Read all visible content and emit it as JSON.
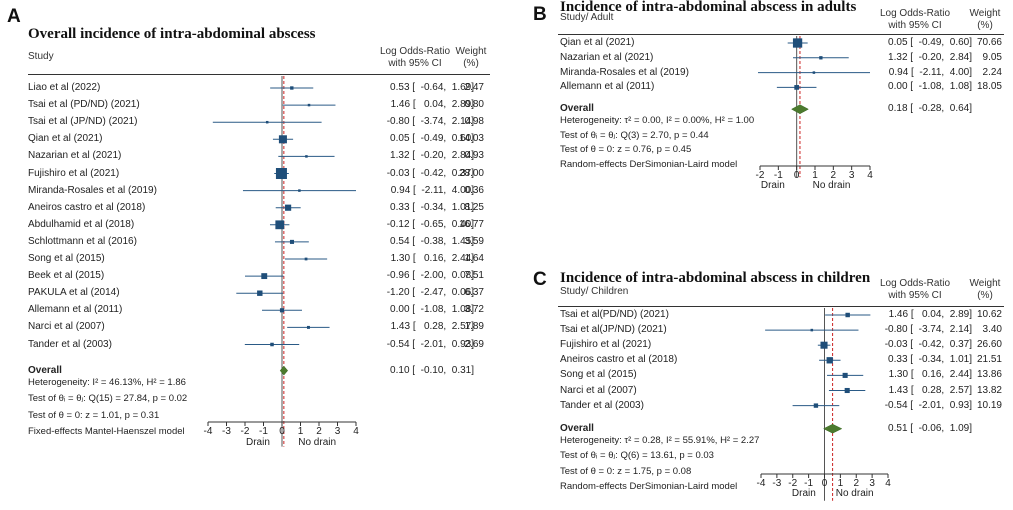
{
  "colors": {
    "marker": "#1f4e79",
    "line": "#2a5a86",
    "diamond": "#4c7a2e",
    "null_line": "#555555",
    "pooled_line": "#cc2222"
  },
  "chart_data": [
    {
      "type": "forest",
      "panel": "A",
      "title": "Overall incidence of intra-abdominal abscess",
      "study_header": "Study",
      "effect_header": [
        "Log Odds-Ratio",
        "with 95% CI"
      ],
      "weight_header": [
        "Weight",
        "(%)"
      ],
      "studies": [
        {
          "name": "Liao et al (2022)",
          "est": 0.53,
          "lo": -0.64,
          "hi": 1.69,
          "weight": 2.47,
          "ci_text": "0.53 [  -0.64,  1.69]",
          "w_text": "2.47"
        },
        {
          "name": "Tsai et al (PD/ND) (2021)",
          "est": 1.46,
          "lo": 0.04,
          "hi": 2.89,
          "weight": 0.8,
          "ci_text": "1.46 [   0.04,  2.89]",
          "w_text": "0.80"
        },
        {
          "name": "Tsai et al (JP/ND) (2021)",
          "est": -0.8,
          "lo": -3.74,
          "hi": 2.14,
          "weight": 0.98,
          "ci_text": "-0.80 [  -3.74,  2.14]",
          "w_text": "0.98"
        },
        {
          "name": "Qian et al (2021)",
          "est": 0.05,
          "lo": -0.49,
          "hi": 0.6,
          "weight": 14.03,
          "ci_text": "0.05 [  -0.49,  0.60]",
          "w_text": "14.03"
        },
        {
          "name": "Nazarian et al (2021)",
          "est": 1.32,
          "lo": -0.2,
          "hi": 2.84,
          "weight": 0.93,
          "ci_text": "1.32 [  -0.20,  2.84]",
          "w_text": "0.93"
        },
        {
          "name": "Fujishiro et al (2021)",
          "est": -0.03,
          "lo": -0.42,
          "hi": 0.37,
          "weight": 28.0,
          "ci_text": "-0.03 [  -0.42,  0.37]",
          "w_text": "28.00"
        },
        {
          "name": "Miranda-Rosales et al (2019)",
          "est": 0.94,
          "lo": -2.11,
          "hi": 4.0,
          "weight": 0.36,
          "ci_text": "0.94 [  -2.11,  4.00]",
          "w_text": "0.36"
        },
        {
          "name": "Aneiros castro et al (2018)",
          "est": 0.33,
          "lo": -0.34,
          "hi": 1.01,
          "weight": 8.25,
          "ci_text": "0.33 [  -0.34,  1.01]",
          "w_text": "8.25"
        },
        {
          "name": "Abdulhamid et al (2018)",
          "est": -0.12,
          "lo": -0.65,
          "hi": 0.4,
          "weight": 16.77,
          "ci_text": "-0.12 [  -0.65,  0.40]",
          "w_text": "16.77"
        },
        {
          "name": "Schlottmann et al (2016)",
          "est": 0.54,
          "lo": -0.38,
          "hi": 1.45,
          "weight": 3.59,
          "ci_text": "0.54 [  -0.38,  1.45]",
          "w_text": "3.59"
        },
        {
          "name": "Song et al (2015)",
          "est": 1.3,
          "lo": 0.16,
          "hi": 2.44,
          "weight": 1.64,
          "ci_text": "1.30 [   0.16,  2.44]",
          "w_text": "1.64"
        },
        {
          "name": "Beek et al (2015)",
          "est": -0.96,
          "lo": -2.0,
          "hi": 0.08,
          "weight": 7.51,
          "ci_text": "-0.96 [  -2.00,  0.08]",
          "w_text": "7.51"
        },
        {
          "name": "PAKULA et al (2014)",
          "est": -1.2,
          "lo": -2.47,
          "hi": 0.06,
          "weight": 6.37,
          "ci_text": "-1.20 [  -2.47,  0.06]",
          "w_text": "6.37"
        },
        {
          "name": "Allemann et al (2011)",
          "est": 0.0,
          "lo": -1.08,
          "hi": 1.08,
          "weight": 3.72,
          "ci_text": "0.00 [  -1.08,  1.08]",
          "w_text": "3.72"
        },
        {
          "name": "Narci et al (2007)",
          "est": 1.43,
          "lo": 0.28,
          "hi": 2.57,
          "weight": 1.89,
          "ci_text": "1.43 [   0.28,  2.57]",
          "w_text": "1.89"
        },
        {
          "name": "Tander et al (2003)",
          "est": -0.54,
          "lo": -2.01,
          "hi": 0.93,
          "weight": 2.69,
          "ci_text": "-0.54 [  -2.01,  0.93]",
          "w_text": "2.69"
        }
      ],
      "overall": {
        "name": "Overall",
        "est": 0.1,
        "lo": -0.1,
        "hi": 0.31,
        "ci_text": "0.10 [  -0.10,  0.31]"
      },
      "stats": [
        "Heterogeneity: I² = 46.13%, H² = 1.86",
        "Test of θᵢ = θⱼ: Q(15) = 27.84, p = 0.02",
        "Test of θ = 0: z = 1.01, p = 0.31",
        "Fixed-effects Mantel-Haenszel model"
      ],
      "x_ticks": [
        -4,
        -3,
        -2,
        -1,
        0,
        1,
        2,
        3,
        4
      ],
      "x_range": [
        -4,
        4
      ],
      "dir_left": "Drain",
      "dir_right": "No drain"
    },
    {
      "type": "forest",
      "panel": "B",
      "title": "Incidence of intra-abdominal abscess in adults",
      "study_header": "Study/ Adult",
      "effect_header": [
        "Log Odds-Ratio",
        "with 95% CI"
      ],
      "weight_header": [
        "Weight",
        "(%)"
      ],
      "studies": [
        {
          "name": "Qian et al (2021)",
          "est": 0.05,
          "lo": -0.49,
          "hi": 0.6,
          "weight": 70.66,
          "ci_text": "0.05 [  -0.49,  0.60]",
          "w_text": "70.66"
        },
        {
          "name": "Nazarian et al (2021)",
          "est": 1.32,
          "lo": -0.2,
          "hi": 2.84,
          "weight": 9.05,
          "ci_text": "1.32 [  -0.20,  2.84]",
          "w_text": "9.05"
        },
        {
          "name": "Miranda-Rosales et al (2019)",
          "est": 0.94,
          "lo": -2.11,
          "hi": 4.0,
          "weight": 2.24,
          "ci_text": "0.94 [  -2.11,  4.00]",
          "w_text": "2.24"
        },
        {
          "name": "Allemann et al (2011)",
          "est": 0.0,
          "lo": -1.08,
          "hi": 1.08,
          "weight": 18.05,
          "ci_text": "0.00 [  -1.08,  1.08]",
          "w_text": "18.05"
        }
      ],
      "overall": {
        "name": "Overall",
        "est": 0.18,
        "lo": -0.28,
        "hi": 0.64,
        "ci_text": "0.18 [  -0.28,  0.64]"
      },
      "stats": [
        "Heterogeneity: τ² = 0.00, I² = 0.00%, H² = 1.00",
        "Test of θᵢ = θⱼ: Q(3) = 2.70, p = 0.44",
        "Test of θ = 0: z = 0.76, p = 0.45",
        "Random-effects DerSimonian-Laird model"
      ],
      "x_ticks": [
        -2,
        -1,
        0,
        1,
        2,
        3,
        4
      ],
      "x_range": [
        -2,
        4
      ],
      "dir_left": "Drain",
      "dir_right": "No drain"
    },
    {
      "type": "forest",
      "panel": "C",
      "title": "Incidence of intra-abdominal abscess in children",
      "study_header": "Study/ Children",
      "effect_header": [
        "Log Odds-Ratio",
        "with 95% CI"
      ],
      "weight_header": [
        "Weight",
        "(%)"
      ],
      "studies": [
        {
          "name": "Tsai  et al(PD/ND) (2021)",
          "est": 1.46,
          "lo": 0.04,
          "hi": 2.89,
          "weight": 10.62,
          "ci_text": "1.46 [   0.04,  2.89]",
          "w_text": "10.62"
        },
        {
          "name": "Tsai  et al(JP/ND) (2021)",
          "est": -0.8,
          "lo": -3.74,
          "hi": 2.14,
          "weight": 3.4,
          "ci_text": "-0.80 [  -3.74,  2.14]",
          "w_text": "3.40"
        },
        {
          "name": "Fujishiro et al (2021)",
          "est": -0.03,
          "lo": -0.42,
          "hi": 0.37,
          "weight": 26.6,
          "ci_text": "-0.03 [  -0.42,  0.37]",
          "w_text": "26.60"
        },
        {
          "name": "Aneiros castro et al (2018)",
          "est": 0.33,
          "lo": -0.34,
          "hi": 1.01,
          "weight": 21.51,
          "ci_text": "0.33 [  -0.34,  1.01]",
          "w_text": "21.51"
        },
        {
          "name": "Song et al (2015)",
          "est": 1.3,
          "lo": 0.16,
          "hi": 2.44,
          "weight": 13.86,
          "ci_text": "1.30 [   0.16,  2.44]",
          "w_text": "13.86"
        },
        {
          "name": "Narci et al (2007)",
          "est": 1.43,
          "lo": 0.28,
          "hi": 2.57,
          "weight": 13.82,
          "ci_text": "1.43 [   0.28,  2.57]",
          "w_text": "13.82"
        },
        {
          "name": "Tander et al (2003)",
          "est": -0.54,
          "lo": -2.01,
          "hi": 0.93,
          "weight": 10.19,
          "ci_text": "-0.54 [  -2.01,  0.93]",
          "w_text": "10.19"
        }
      ],
      "overall": {
        "name": "Overall",
        "est": 0.51,
        "lo": -0.06,
        "hi": 1.09,
        "ci_text": "0.51 [  -0.06,  1.09]"
      },
      "stats": [
        "Heterogeneity: τ² = 0.28, I² = 55.91%, H² = 2.27",
        "Test of θᵢ = θⱼ: Q(6) = 13.61, p = 0.03",
        "Test of θ = 0: z = 1.75, p = 0.08",
        "Random-effects DerSimonian-Laird model"
      ],
      "x_ticks": [
        -4,
        -3,
        -2,
        -1,
        0,
        1,
        2,
        3,
        4
      ],
      "x_range": [
        -4,
        4
      ],
      "dir_left": "Drain",
      "dir_right": "No drain"
    }
  ]
}
